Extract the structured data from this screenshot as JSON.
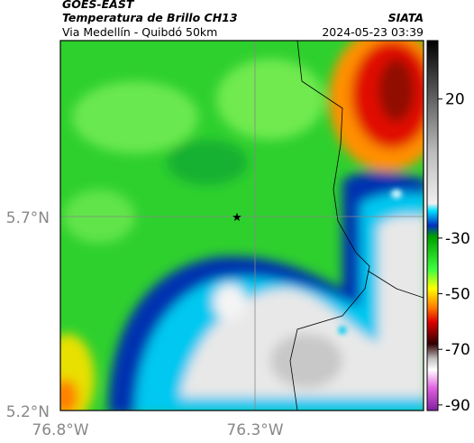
{
  "header": {
    "satellite": "GOES-EAST",
    "product": "Temperatura de Brillo CH13",
    "region": "Via Medellín - Quibdó 50km",
    "source": "SIATA",
    "timestamp": "2024-05-23 03:39"
  },
  "map": {
    "y_labels": [
      "5.7°N",
      "5.2°N"
    ],
    "x_labels": [
      "76.8°W",
      "76.3°W"
    ]
  },
  "colorbar": {
    "lim": [
      -92,
      41
    ],
    "ticks": [
      20,
      -30,
      -50,
      -70,
      -90
    ]
  }
}
